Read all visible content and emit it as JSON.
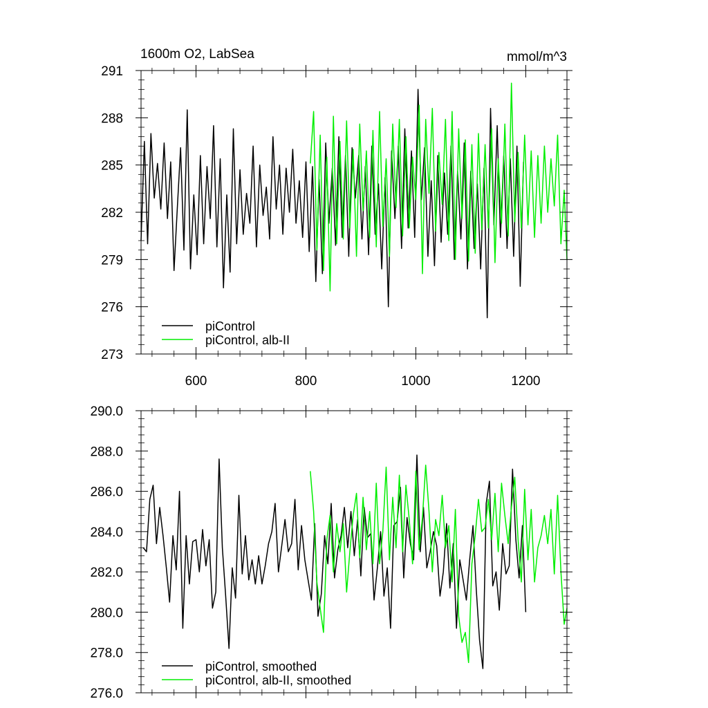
{
  "chart_data": [
    {
      "type": "line",
      "title": "1600m O2, LabSea",
      "units": "mmol/m^3",
      "xlabel": "",
      "ylabel": "",
      "xlim": [
        500,
        1275
      ],
      "ylim": [
        273,
        291
      ],
      "x_ticks": [
        600,
        800,
        1000,
        1200
      ],
      "x_tick_labels": [
        "600",
        "800",
        "1000",
        "1200"
      ],
      "y_ticks": [
        273,
        276,
        279,
        282,
        285,
        288,
        291
      ],
      "y_tick_labels": [
        "273",
        "276",
        "279",
        "282",
        "285",
        "288",
        "291"
      ],
      "legend_position": "bottom-left",
      "grid": false,
      "series": [
        {
          "name": "piControl",
          "color": "#000000",
          "x": [
            500,
            506,
            512,
            518,
            524,
            530,
            536,
            542,
            548,
            554,
            560,
            566,
            572,
            578,
            584,
            590,
            596,
            602,
            608,
            614,
            620,
            626,
            632,
            638,
            644,
            650,
            656,
            662,
            668,
            674,
            680,
            686,
            692,
            698,
            704,
            710,
            716,
            722,
            728,
            734,
            740,
            746,
            752,
            758,
            764,
            770,
            776,
            782,
            788,
            794,
            800,
            806,
            812,
            818,
            824,
            830,
            836,
            842,
            848,
            854,
            860,
            866,
            872,
            878,
            884,
            890,
            896,
            902,
            908,
            914,
            920,
            926,
            932,
            938,
            944,
            950,
            956,
            962,
            968,
            974,
            980,
            986,
            992,
            998,
            1004,
            1010,
            1016,
            1022,
            1028,
            1034,
            1040,
            1046,
            1052,
            1058,
            1064,
            1070,
            1076,
            1082,
            1088,
            1094,
            1100,
            1106,
            1112,
            1118,
            1124,
            1130,
            1136,
            1142,
            1148,
            1154,
            1160,
            1166,
            1172,
            1178,
            1184,
            1190,
            1196
          ],
          "values": [
            280.2,
            286.5,
            280.0,
            287.0,
            282.9,
            285.1,
            282.2,
            286.4,
            281.6,
            285.2,
            278.3,
            282.3,
            286.1,
            279.6,
            288.5,
            278.4,
            283.1,
            279.3,
            285.6,
            280.0,
            284.9,
            281.6,
            287.5,
            279.8,
            285.4,
            277.2,
            283.1,
            278.2,
            287.3,
            280.0,
            284.7,
            280.6,
            283.2,
            281.3,
            286.2,
            279.8,
            285.0,
            281.8,
            283.6,
            280.3,
            286.8,
            282.2,
            285.0,
            280.6,
            284.8,
            282.0,
            286.0,
            281.3,
            284.0,
            280.4,
            285.2,
            279.5,
            284.9,
            277.6,
            284.1,
            278.1,
            286.4,
            281.3,
            284.8,
            279.9,
            286.8,
            280.4,
            285.6,
            279.2,
            286.1,
            282.9,
            285.6,
            280.3,
            284.9,
            279.3,
            286.2,
            280.6,
            283.8,
            278.4,
            284.2,
            276.0,
            285.9,
            281.6,
            286.2,
            279.7,
            287.3,
            281.0,
            285.9,
            280.4,
            289.8,
            282.8,
            286.1,
            279.2,
            284.0,
            278.6,
            285.6,
            280.1,
            284.5,
            280.6,
            286.2,
            279.0,
            284.6,
            280.3,
            286.4,
            278.4,
            284.6,
            279.7,
            283.8,
            278.4,
            284.8,
            275.3,
            288.6,
            281.2,
            287.5,
            280.4,
            285.6,
            279.7,
            285.4,
            279.2,
            286.2,
            277.3,
            285.2
          ]
        },
        {
          "name": "piControl, alb-II",
          "color": "#00ee00",
          "x": [
            808,
            814,
            820,
            826,
            832,
            838,
            844,
            850,
            856,
            862,
            868,
            874,
            880,
            886,
            892,
            898,
            904,
            910,
            916,
            922,
            928,
            934,
            940,
            946,
            952,
            958,
            964,
            970,
            976,
            982,
            988,
            994,
            1000,
            1006,
            1012,
            1018,
            1024,
            1030,
            1036,
            1042,
            1048,
            1054,
            1060,
            1066,
            1072,
            1078,
            1084,
            1090,
            1096,
            1102,
            1108,
            1114,
            1120,
            1126,
            1132,
            1138,
            1144,
            1150,
            1156,
            1162,
            1168,
            1174,
            1180,
            1186,
            1192,
            1198,
            1204,
            1210,
            1216,
            1222,
            1228,
            1234,
            1240,
            1246,
            1252,
            1258,
            1264,
            1270,
            1275
          ],
          "values": [
            285.1,
            288.4,
            279.6,
            286.9,
            278.3,
            285.5,
            277.0,
            288.1,
            280.0,
            286.5,
            280.3,
            287.8,
            281.0,
            286.0,
            279.2,
            287.6,
            282.1,
            285.9,
            280.4,
            287.2,
            279.8,
            288.4,
            281.1,
            285.4,
            279.2,
            287.6,
            282.3,
            287.9,
            280.5,
            286.8,
            281.0,
            285.5,
            282.8,
            288.8,
            278.1,
            287.9,
            283.2,
            288.6,
            280.8,
            285.8,
            282.5,
            287.9,
            280.2,
            288.4,
            279.0,
            287.3,
            281.6,
            286.6,
            278.9,
            286.3,
            279.4,
            287.0,
            280.9,
            286.3,
            281.0,
            287.3,
            278.8,
            285.4,
            281.3,
            287.6,
            280.5,
            290.2,
            281.4,
            285.8,
            281.0,
            286.9,
            281.2,
            285.9,
            280.4,
            285.6,
            281.3,
            286.2,
            282.0,
            285.4,
            282.4,
            286.9,
            280.0,
            283.4,
            279.0
          ]
        }
      ]
    },
    {
      "type": "line",
      "title": "",
      "xlabel": "",
      "ylabel": "",
      "xlim": [
        500,
        1275
      ],
      "ylim": [
        276,
        290
      ],
      "x_ticks": [
        600,
        800,
        1000,
        1200
      ],
      "y_ticks": [
        276,
        278,
        280,
        282,
        284,
        286,
        288,
        290
      ],
      "y_tick_labels": [
        "276.0",
        "278.0",
        "280.0",
        "282.0",
        "284.0",
        "286.0",
        "288.0",
        "290.0"
      ],
      "legend_position": "bottom-left",
      "grid": false,
      "series": [
        {
          "name": "piControl, smoothed",
          "color": "#000000",
          "x": [
            504,
            510,
            516,
            522,
            528,
            534,
            540,
            546,
            552,
            558,
            564,
            570,
            576,
            582,
            588,
            594,
            600,
            606,
            612,
            618,
            624,
            630,
            636,
            642,
            648,
            654,
            660,
            666,
            672,
            678,
            684,
            690,
            696,
            702,
            708,
            714,
            720,
            726,
            732,
            738,
            744,
            750,
            756,
            762,
            768,
            774,
            780,
            786,
            792,
            798,
            804,
            810,
            816,
            822,
            828,
            834,
            840,
            846,
            852,
            858,
            864,
            870,
            876,
            882,
            888,
            894,
            900,
            906,
            912,
            918,
            924,
            930,
            936,
            942,
            948,
            954,
            960,
            966,
            972,
            978,
            984,
            990,
            996,
            1002,
            1008,
            1014,
            1020,
            1026,
            1032,
            1038,
            1044,
            1050,
            1056,
            1062,
            1068,
            1074,
            1080,
            1086,
            1092,
            1098,
            1104,
            1110,
            1116,
            1122,
            1128,
            1134,
            1140,
            1146,
            1152,
            1158,
            1164,
            1170,
            1176,
            1182,
            1188,
            1194,
            1200
          ],
          "values": [
            283.2,
            283.0,
            285.6,
            286.3,
            283.4,
            285.2,
            283.8,
            282.2,
            280.5,
            283.8,
            282.1,
            286.0,
            279.2,
            283.8,
            281.4,
            283.5,
            283.6,
            282.0,
            284.1,
            282.3,
            283.6,
            280.2,
            281.0,
            287.6,
            283.2,
            280.8,
            278.2,
            282.2,
            280.7,
            285.8,
            281.9,
            283.8,
            281.6,
            282.6,
            281.4,
            282.8,
            281.4,
            282.3,
            283.4,
            284.0,
            285.4,
            282.0,
            283.3,
            284.6,
            283.0,
            283.4,
            285.6,
            282.1,
            284.3,
            282.6,
            281.6,
            280.6,
            284.4,
            279.8,
            280.9,
            283.8,
            282.4,
            285.4,
            281.7,
            283.1,
            283.8,
            285.2,
            283.2,
            285.0,
            282.8,
            284.6,
            281.8,
            285.2,
            283.7,
            283.9,
            280.6,
            282.2,
            284.0,
            280.8,
            282.2,
            279.2,
            284.3,
            284.5,
            286.2,
            281.7,
            284.7,
            283.4,
            282.6,
            287.8,
            283.0,
            285.2,
            282.2,
            283.0,
            284.0,
            283.3,
            280.8,
            282.0,
            284.4,
            281.2,
            283.4,
            279.2,
            282.6,
            281.6,
            280.6,
            282.6,
            284.3,
            281.1,
            278.6,
            277.2,
            285.4,
            286.5,
            281.3,
            282.0,
            280.1,
            283.4,
            281.9,
            282.3,
            287.1,
            283.6,
            281.7,
            284.3,
            280.0
          ]
        },
        {
          "name": "piControl, alb-II, smoothed",
          "color": "#00ee00",
          "x": [
            808,
            814,
            820,
            826,
            832,
            838,
            844,
            850,
            856,
            862,
            868,
            874,
            880,
            886,
            892,
            898,
            904,
            910,
            916,
            922,
            928,
            934,
            940,
            946,
            952,
            958,
            964,
            970,
            976,
            982,
            988,
            994,
            1000,
            1006,
            1012,
            1018,
            1024,
            1030,
            1036,
            1042,
            1048,
            1054,
            1060,
            1066,
            1072,
            1078,
            1084,
            1090,
            1096,
            1102,
            1108,
            1114,
            1120,
            1126,
            1132,
            1138,
            1144,
            1150,
            1156,
            1162,
            1168,
            1174,
            1180,
            1186,
            1192,
            1198,
            1204,
            1210,
            1216,
            1222,
            1228,
            1234,
            1240,
            1246,
            1252,
            1258,
            1264,
            1270,
            1275
          ],
          "values": [
            287.0,
            285.0,
            281.5,
            280.2,
            279.0,
            283.6,
            284.8,
            282.0,
            284.4,
            283.0,
            284.4,
            281.0,
            283.0,
            284.8,
            285.9,
            282.7,
            285.7,
            283.1,
            285.0,
            282.4,
            286.4,
            282.4,
            284.0,
            287.2,
            282.6,
            285.7,
            283.2,
            286.8,
            283.0,
            286.3,
            284.6,
            282.4,
            287.0,
            283.1,
            284.7,
            287.3,
            285.0,
            282.0,
            284.6,
            283.8,
            285.8,
            283.2,
            284.3,
            281.5,
            285.1,
            279.8,
            278.5,
            279.0,
            277.5,
            282.4,
            283.8,
            285.6,
            284.0,
            284.2,
            285.6,
            283.6,
            285.9,
            283.0,
            286.4,
            284.8,
            283.4,
            285.2,
            286.7,
            283.6,
            281.5,
            286.1,
            282.6,
            285.1,
            281.5,
            283.2,
            283.8,
            284.8,
            283.4,
            285.1,
            281.9,
            285.8,
            282.0,
            279.4,
            280.2
          ]
        }
      ]
    }
  ]
}
